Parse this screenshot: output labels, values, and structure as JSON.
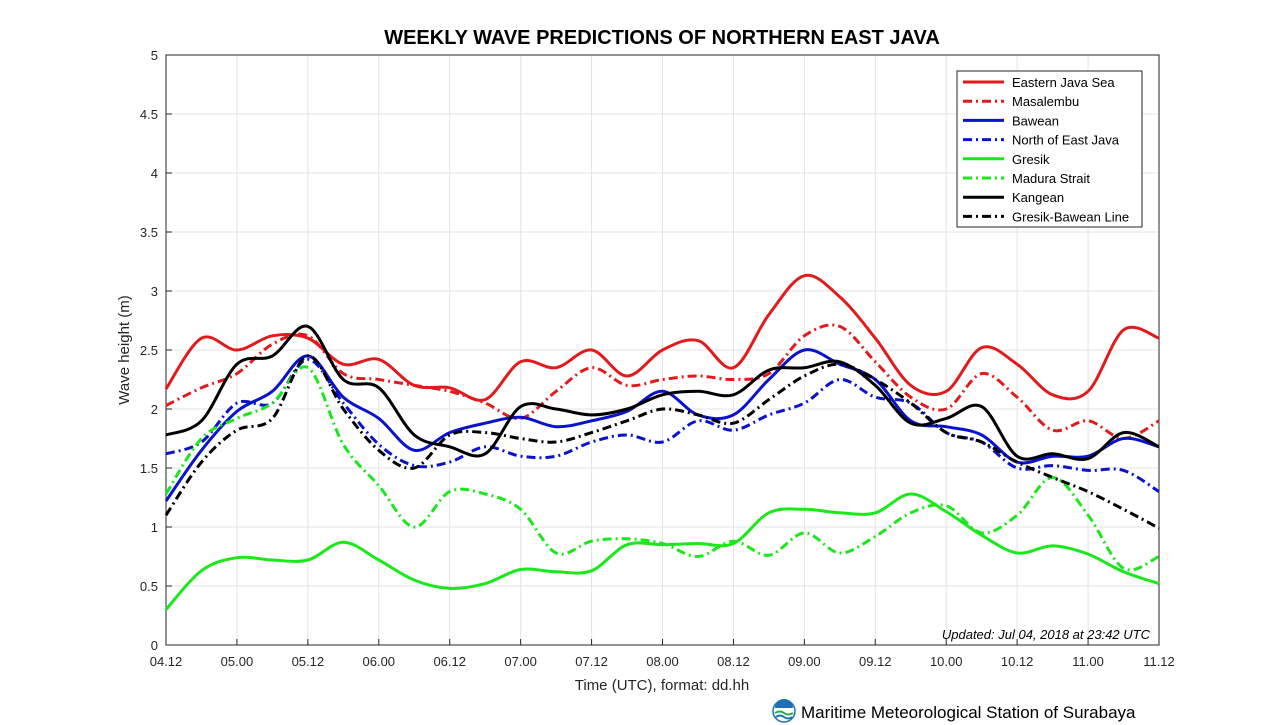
{
  "chart_data": {
    "type": "line",
    "title": "WEEKLY WAVE PREDICTIONS OF NORTHERN EAST JAVA",
    "xlabel": "Time (UTC), format: dd.hh",
    "ylabel": "Wave height (m)",
    "x_ticks": [
      "04.12",
      "05.00",
      "05.12",
      "06.00",
      "06.12",
      "07.00",
      "07.12",
      "08.00",
      "08.12",
      "09.00",
      "09.12",
      "10.00",
      "10.12",
      "11.00",
      "11.12"
    ],
    "y_ticks": [
      "0",
      "0.5",
      "1",
      "1.5",
      "2",
      "2.5",
      "3",
      "3.5",
      "4",
      "4.5",
      "5"
    ],
    "ylim": [
      0,
      5
    ],
    "grid": true,
    "legend_position": "top-right",
    "x": [
      0,
      1,
      2,
      3,
      4,
      5,
      6,
      7,
      8,
      9,
      10,
      11,
      12,
      13,
      14,
      15,
      16,
      17,
      18,
      19,
      20,
      21,
      22,
      23,
      24,
      25,
      26,
      27,
      28
    ],
    "series": [
      {
        "name": "Eastern Java Sea",
        "color": "#e31a1c",
        "dash": "solid",
        "values": [
          2.17,
          2.6,
          2.5,
          2.62,
          2.6,
          2.38,
          2.42,
          2.2,
          2.18,
          2.08,
          2.4,
          2.35,
          2.5,
          2.28,
          2.5,
          2.58,
          2.35,
          2.8,
          3.13,
          2.95,
          2.6,
          2.2,
          2.15,
          2.52,
          2.38,
          2.12,
          2.15,
          2.67,
          2.6
        ]
      },
      {
        "name": "Masalembu",
        "color": "#e31a1c",
        "dash": "dashdot",
        "values": [
          2.03,
          2.18,
          2.3,
          2.55,
          2.62,
          2.3,
          2.25,
          2.2,
          2.15,
          2.05,
          1.92,
          2.15,
          2.35,
          2.2,
          2.25,
          2.28,
          2.25,
          2.3,
          2.62,
          2.7,
          2.4,
          2.1,
          2.0,
          2.3,
          2.1,
          1.82,
          1.9,
          1.75,
          1.9
        ]
      },
      {
        "name": "Bawean",
        "color": "#0a13cc",
        "dash": "solid",
        "values": [
          1.22,
          1.65,
          1.98,
          2.15,
          2.45,
          2.1,
          1.92,
          1.65,
          1.8,
          1.88,
          1.93,
          1.85,
          1.9,
          1.98,
          2.15,
          1.95,
          1.95,
          2.25,
          2.5,
          2.38,
          2.25,
          1.9,
          1.85,
          1.78,
          1.55,
          1.6,
          1.6,
          1.75,
          1.68
        ]
      },
      {
        "name": "North of East Java",
        "color": "#0a13cc",
        "dash": "dashdot",
        "values": [
          1.62,
          1.72,
          2.05,
          2.05,
          2.42,
          2.05,
          1.7,
          1.52,
          1.55,
          1.68,
          1.6,
          1.6,
          1.72,
          1.78,
          1.72,
          1.9,
          1.82,
          1.95,
          2.05,
          2.25,
          2.1,
          2.05,
          1.8,
          1.72,
          1.5,
          1.52,
          1.48,
          1.48,
          1.3
        ]
      },
      {
        "name": "Gresik",
        "color": "#1be81b",
        "dash": "solid",
        "values": [
          0.3,
          0.63,
          0.74,
          0.72,
          0.72,
          0.87,
          0.72,
          0.55,
          0.48,
          0.52,
          0.64,
          0.62,
          0.63,
          0.85,
          0.85,
          0.86,
          0.86,
          1.12,
          1.15,
          1.12,
          1.12,
          1.28,
          1.13,
          0.93,
          0.78,
          0.84,
          0.77,
          0.62,
          0.52
        ]
      },
      {
        "name": "Madura Strait",
        "color": "#1be81b",
        "dash": "dashdot",
        "values": [
          1.28,
          1.75,
          1.92,
          2.05,
          2.35,
          1.7,
          1.35,
          1.0,
          1.3,
          1.28,
          1.15,
          0.78,
          0.88,
          0.9,
          0.86,
          0.75,
          0.88,
          0.76,
          0.95,
          0.78,
          0.92,
          1.12,
          1.18,
          0.95,
          1.1,
          1.42,
          1.1,
          0.65,
          0.75
        ]
      },
      {
        "name": "Kangean",
        "color": "#000000",
        "dash": "solid",
        "values": [
          1.78,
          1.9,
          2.38,
          2.45,
          2.7,
          2.25,
          2.18,
          1.78,
          1.68,
          1.62,
          2.02,
          2.0,
          1.95,
          2.0,
          2.12,
          2.15,
          2.12,
          2.33,
          2.35,
          2.4,
          2.2,
          1.88,
          1.92,
          2.02,
          1.6,
          1.62,
          1.58,
          1.8,
          1.68
        ]
      },
      {
        "name": "Gresik-Bawean Line",
        "color": "#000000",
        "dash": "dashdot",
        "values": [
          1.1,
          1.55,
          1.82,
          1.92,
          2.45,
          2.0,
          1.65,
          1.5,
          1.78,
          1.8,
          1.75,
          1.72,
          1.8,
          1.9,
          2.0,
          1.95,
          1.88,
          2.08,
          2.28,
          2.38,
          2.25,
          2.05,
          1.8,
          1.72,
          1.55,
          1.42,
          1.3,
          1.15,
          0.99
        ]
      }
    ],
    "annotation": "Updated: Jul 04, 2018 at 23:42 UTC"
  },
  "footer": {
    "text": "Maritime Meteorological Station of Surabaya",
    "logo_icon": "bmkg-logo-icon"
  }
}
